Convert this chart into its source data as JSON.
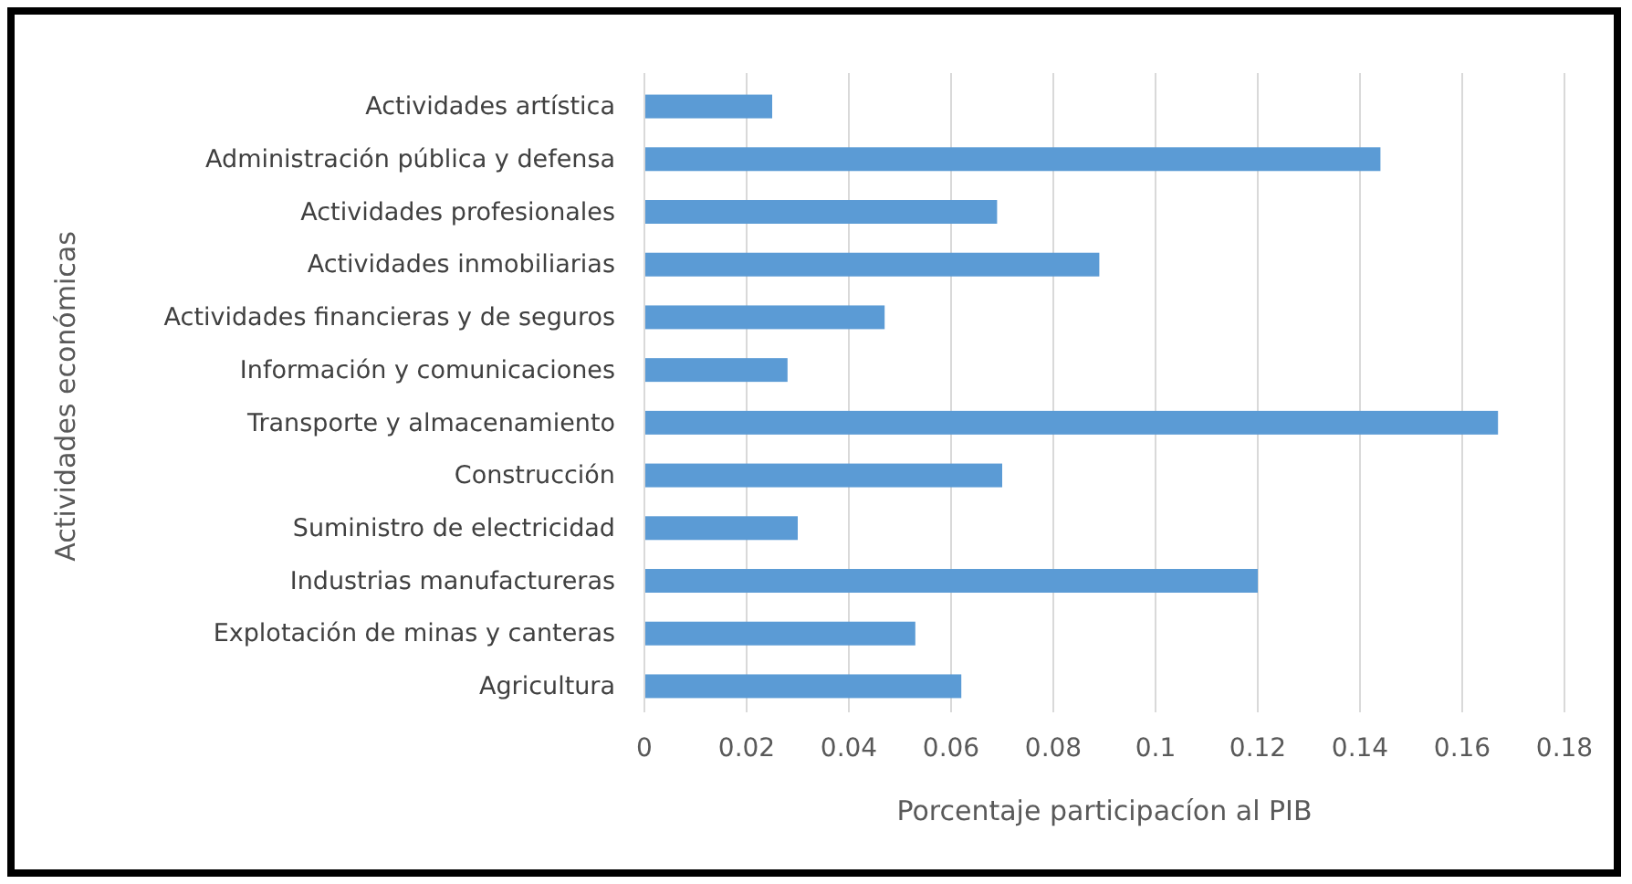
{
  "chart_data": {
    "type": "bar",
    "orientation": "horizontal",
    "xlabel": "Porcentaje participacíon al PIB",
    "ylabel": "Actividades económicas",
    "categories": [
      "Actividades artística",
      "Administración pública y defensa",
      "Actividades profesionales",
      "Actividades inmobiliarias",
      "Actividades financieras y de seguros",
      "Información y comunicaciones",
      "Transporte y almacenamiento",
      "Construcción",
      "Suministro de electricidad",
      "Industrias manufactureras",
      "Explotación de minas y canteras",
      "Agricultura"
    ],
    "values": [
      0.025,
      0.144,
      0.069,
      0.089,
      0.047,
      0.028,
      0.167,
      0.07,
      0.03,
      0.12,
      0.053,
      0.062
    ],
    "color": "#5b9bd5",
    "xlim": [
      0,
      0.18
    ],
    "xticks": [
      0,
      0.02,
      0.04,
      0.06,
      0.08,
      0.1,
      0.12,
      0.14,
      0.16,
      0.18
    ],
    "grid": "x"
  }
}
